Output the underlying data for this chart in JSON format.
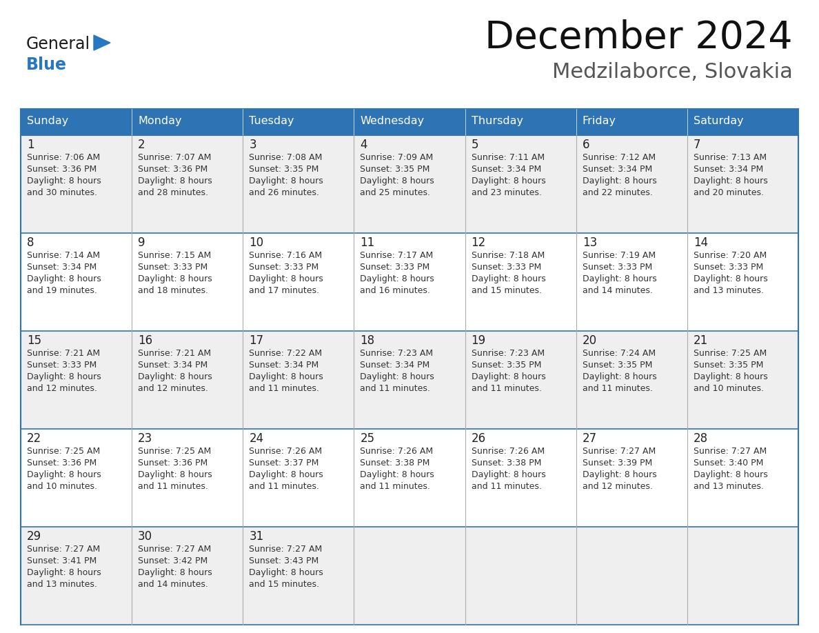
{
  "title": "December 2024",
  "subtitle": "Medzilaborce, Slovakia",
  "days_of_week": [
    "Sunday",
    "Monday",
    "Tuesday",
    "Wednesday",
    "Thursday",
    "Friday",
    "Saturday"
  ],
  "header_bg": "#2E74B5",
  "header_text": "#FFFFFF",
  "cell_bg_even": "#EFEFEF",
  "cell_bg_odd": "#FFFFFF",
  "border_color": "#2E74B5",
  "grid_color": "#AAAAAA",
  "text_color": "#333333",
  "day_num_color": "#222222",
  "logo_general_color": "#1a1a1a",
  "logo_blue_color": "#2777C2",
  "calendar_data": [
    [
      {
        "day": 1,
        "sunrise": "7:06 AM",
        "sunset": "3:36 PM",
        "daylight": "8 hours and 30 minutes."
      },
      {
        "day": 2,
        "sunrise": "7:07 AM",
        "sunset": "3:36 PM",
        "daylight": "8 hours and 28 minutes."
      },
      {
        "day": 3,
        "sunrise": "7:08 AM",
        "sunset": "3:35 PM",
        "daylight": "8 hours and 26 minutes."
      },
      {
        "day": 4,
        "sunrise": "7:09 AM",
        "sunset": "3:35 PM",
        "daylight": "8 hours and 25 minutes."
      },
      {
        "day": 5,
        "sunrise": "7:11 AM",
        "sunset": "3:34 PM",
        "daylight": "8 hours and 23 minutes."
      },
      {
        "day": 6,
        "sunrise": "7:12 AM",
        "sunset": "3:34 PM",
        "daylight": "8 hours and 22 minutes."
      },
      {
        "day": 7,
        "sunrise": "7:13 AM",
        "sunset": "3:34 PM",
        "daylight": "8 hours and 20 minutes."
      }
    ],
    [
      {
        "day": 8,
        "sunrise": "7:14 AM",
        "sunset": "3:34 PM",
        "daylight": "8 hours and 19 minutes."
      },
      {
        "day": 9,
        "sunrise": "7:15 AM",
        "sunset": "3:33 PM",
        "daylight": "8 hours and 18 minutes."
      },
      {
        "day": 10,
        "sunrise": "7:16 AM",
        "sunset": "3:33 PM",
        "daylight": "8 hours and 17 minutes."
      },
      {
        "day": 11,
        "sunrise": "7:17 AM",
        "sunset": "3:33 PM",
        "daylight": "8 hours and 16 minutes."
      },
      {
        "day": 12,
        "sunrise": "7:18 AM",
        "sunset": "3:33 PM",
        "daylight": "8 hours and 15 minutes."
      },
      {
        "day": 13,
        "sunrise": "7:19 AM",
        "sunset": "3:33 PM",
        "daylight": "8 hours and 14 minutes."
      },
      {
        "day": 14,
        "sunrise": "7:20 AM",
        "sunset": "3:33 PM",
        "daylight": "8 hours and 13 minutes."
      }
    ],
    [
      {
        "day": 15,
        "sunrise": "7:21 AM",
        "sunset": "3:33 PM",
        "daylight": "8 hours and 12 minutes."
      },
      {
        "day": 16,
        "sunrise": "7:21 AM",
        "sunset": "3:34 PM",
        "daylight": "8 hours and 12 minutes."
      },
      {
        "day": 17,
        "sunrise": "7:22 AM",
        "sunset": "3:34 PM",
        "daylight": "8 hours and 11 minutes."
      },
      {
        "day": 18,
        "sunrise": "7:23 AM",
        "sunset": "3:34 PM",
        "daylight": "8 hours and 11 minutes."
      },
      {
        "day": 19,
        "sunrise": "7:23 AM",
        "sunset": "3:35 PM",
        "daylight": "8 hours and 11 minutes."
      },
      {
        "day": 20,
        "sunrise": "7:24 AM",
        "sunset": "3:35 PM",
        "daylight": "8 hours and 11 minutes."
      },
      {
        "day": 21,
        "sunrise": "7:25 AM",
        "sunset": "3:35 PM",
        "daylight": "8 hours and 10 minutes."
      }
    ],
    [
      {
        "day": 22,
        "sunrise": "7:25 AM",
        "sunset": "3:36 PM",
        "daylight": "8 hours and 10 minutes."
      },
      {
        "day": 23,
        "sunrise": "7:25 AM",
        "sunset": "3:36 PM",
        "daylight": "8 hours and 11 minutes."
      },
      {
        "day": 24,
        "sunrise": "7:26 AM",
        "sunset": "3:37 PM",
        "daylight": "8 hours and 11 minutes."
      },
      {
        "day": 25,
        "sunrise": "7:26 AM",
        "sunset": "3:38 PM",
        "daylight": "8 hours and 11 minutes."
      },
      {
        "day": 26,
        "sunrise": "7:26 AM",
        "sunset": "3:38 PM",
        "daylight": "8 hours and 11 minutes."
      },
      {
        "day": 27,
        "sunrise": "7:27 AM",
        "sunset": "3:39 PM",
        "daylight": "8 hours and 12 minutes."
      },
      {
        "day": 28,
        "sunrise": "7:27 AM",
        "sunset": "3:40 PM",
        "daylight": "8 hours and 13 minutes."
      }
    ],
    [
      {
        "day": 29,
        "sunrise": "7:27 AM",
        "sunset": "3:41 PM",
        "daylight": "8 hours and 13 minutes."
      },
      {
        "day": 30,
        "sunrise": "7:27 AM",
        "sunset": "3:42 PM",
        "daylight": "8 hours and 14 minutes."
      },
      {
        "day": 31,
        "sunrise": "7:27 AM",
        "sunset": "3:43 PM",
        "daylight": "8 hours and 15 minutes."
      },
      null,
      null,
      null,
      null
    ]
  ],
  "fig_width": 11.88,
  "fig_height": 9.18,
  "dpi": 100
}
